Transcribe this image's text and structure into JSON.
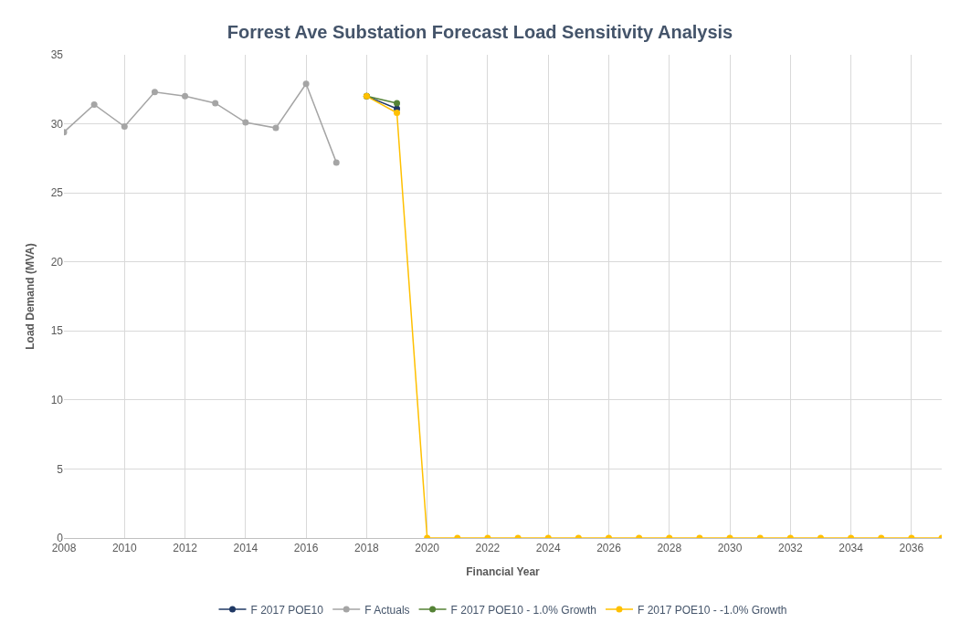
{
  "chart_data": {
    "type": "line",
    "title": "Forrest Ave Substation Forecast Load Sensitivity Analysis",
    "xlabel": "Financial Year",
    "ylabel": "Load Demand (MVA)",
    "series": [
      {
        "name": "F 2017 POE10",
        "color": "#1f3864",
        "x": [
          2018,
          2019
        ],
        "values": [
          32.0,
          31.1
        ]
      },
      {
        "name": "F Actuals",
        "color": "#a5a5a5",
        "x": [
          2008,
          2009,
          2010,
          2011,
          2012,
          2013,
          2014,
          2015,
          2016,
          2017
        ],
        "values": [
          29.4,
          31.4,
          29.8,
          32.3,
          32.0,
          31.5,
          30.1,
          29.7,
          32.9,
          27.2
        ]
      },
      {
        "name": "F 2017 POE10 - 1.0% Growth",
        "color": "#548235",
        "x": [
          2018,
          2019
        ],
        "values": [
          32.0,
          31.5
        ]
      },
      {
        "name": "F 2017 POE10 - -1.0% Growth",
        "color": "#ffc000",
        "x": [
          2018,
          2019,
          2020,
          2021,
          2022,
          2023,
          2024,
          2025,
          2026,
          2027,
          2028,
          2029,
          2030,
          2031,
          2032,
          2033,
          2034,
          2035,
          2036,
          2037
        ],
        "values": [
          32.0,
          30.8,
          0,
          0,
          0,
          0,
          0,
          0,
          0,
          0,
          0,
          0,
          0,
          0,
          0,
          0,
          0,
          0,
          0,
          0
        ]
      }
    ],
    "xlim": [
      2008,
      2037
    ],
    "xticks": [
      2008,
      2010,
      2012,
      2014,
      2016,
      2018,
      2020,
      2022,
      2024,
      2026,
      2028,
      2030,
      2032,
      2034,
      2036
    ],
    "ylim": [
      0,
      35
    ],
    "yticks": [
      0,
      5,
      10,
      15,
      20,
      25,
      30,
      35
    ],
    "grid": true,
    "legend": "bottom",
    "marker": "circle",
    "line_style": "solid"
  }
}
